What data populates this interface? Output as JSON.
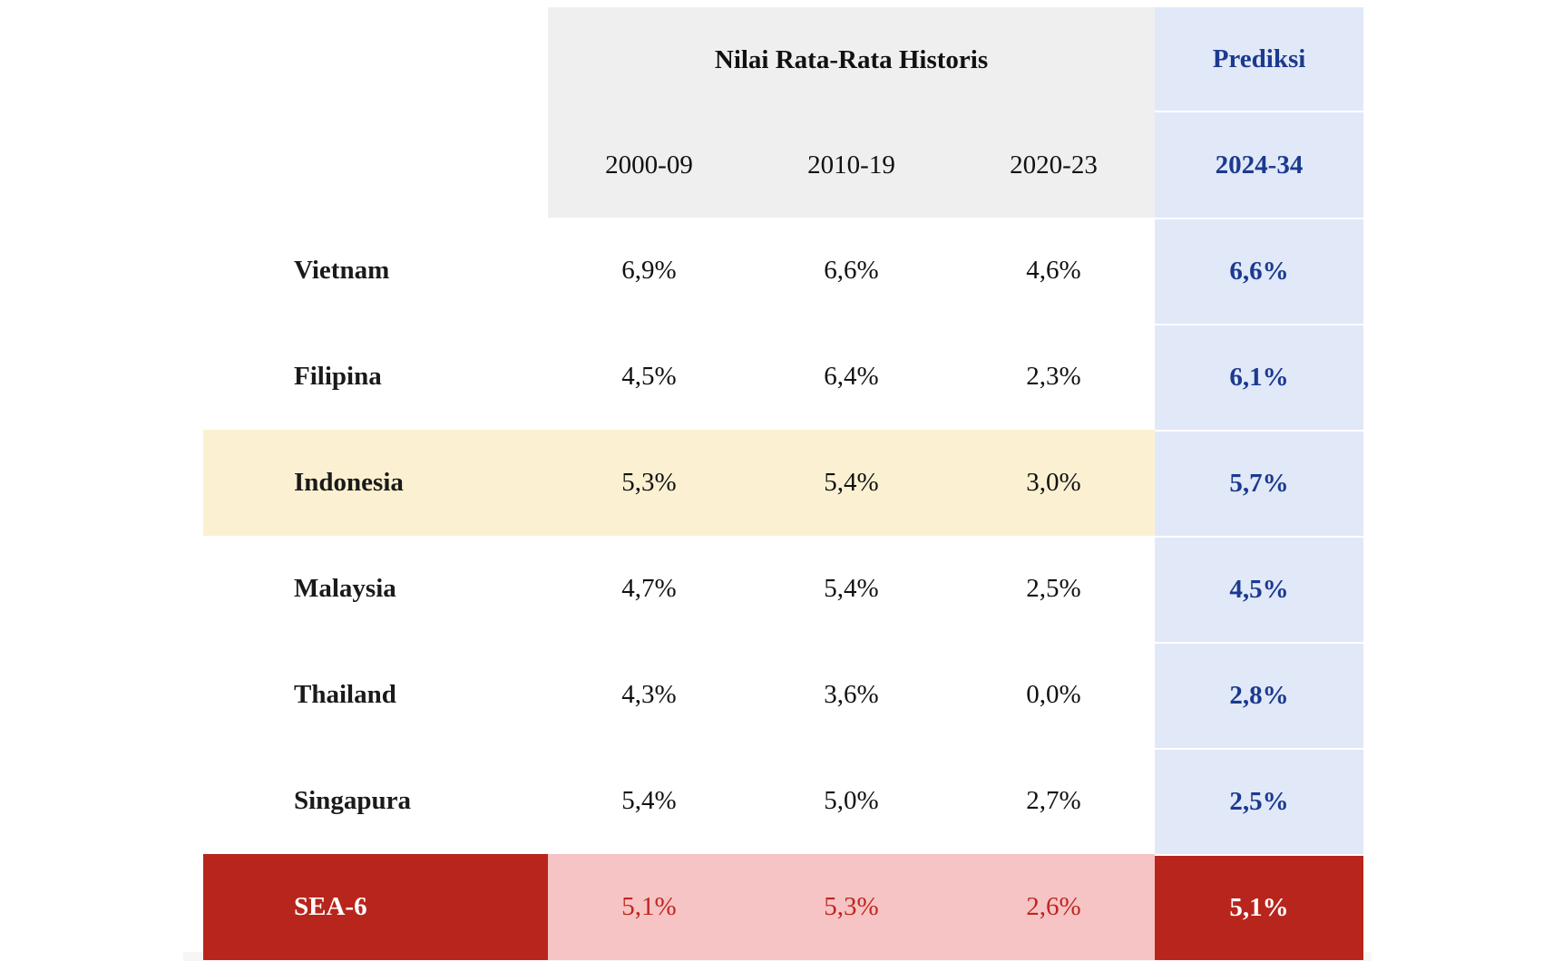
{
  "chart_data": {
    "type": "table",
    "header": {
      "historical_group": "Nilai Rata-Rata Historis",
      "prediction_group": "Prediksi"
    },
    "columns": [
      "2000-09",
      "2010-19",
      "2020-23",
      "2024-34"
    ],
    "rows": [
      {
        "label": "Vietnam",
        "values": [
          "6,9%",
          "6,6%",
          "4,6%",
          "6,6%"
        ]
      },
      {
        "label": "Filipina",
        "values": [
          "4,5%",
          "6,4%",
          "2,3%",
          "6,1%"
        ]
      },
      {
        "label": "Indonesia",
        "values": [
          "5,3%",
          "5,4%",
          "3,0%",
          "5,7%"
        ],
        "highlighted": true
      },
      {
        "label": "Malaysia",
        "values": [
          "4,7%",
          "5,4%",
          "2,5%",
          "4,5%"
        ]
      },
      {
        "label": "Thailand",
        "values": [
          "4,3%",
          "3,6%",
          "0,0%",
          "2,8%"
        ]
      },
      {
        "label": "Singapura",
        "values": [
          "5,4%",
          "5,0%",
          "2,7%",
          "2,5%"
        ]
      },
      {
        "label": "SEA-6",
        "values": [
          "5,1%",
          "5,3%",
          "2,6%",
          "5,1%"
        ],
        "aggregate": true
      }
    ],
    "colors": {
      "header_bg": "#efefef",
      "prediction_bg": "#e1e8f8",
      "prediction_text": "#1b3a8f",
      "highlight_bg": "#fbf1d2",
      "aggregate_dark": "#b8251c",
      "aggregate_light": "#f6c4c4",
      "aggregate_text": "#c0251f"
    }
  }
}
